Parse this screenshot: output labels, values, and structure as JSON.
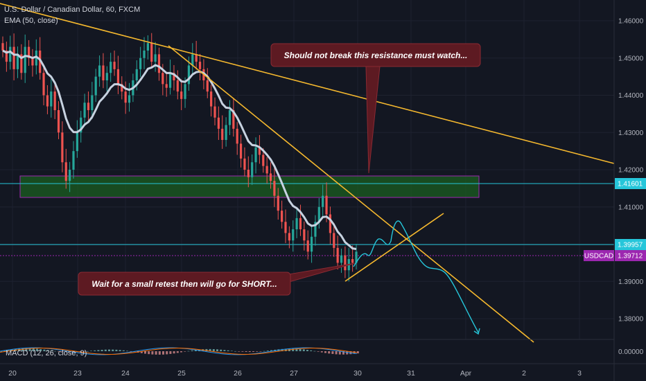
{
  "chart_data": {
    "type": "candlestick",
    "title": "U.S. Dollar / Canadian Dollar, 60, FXCM",
    "indicator_label": "EMA (50, close)",
    "macd_label": "MACD (12, 26, close, 9)",
    "symbol_tag": "USDCAD",
    "price_axis": {
      "ylim": [
        1.375,
        1.465
      ],
      "ticks": [
        "1.46000",
        "1.45000",
        "1.44000",
        "1.43000",
        "1.42000",
        "1.41000",
        "1.40000",
        "1.39000",
        "1.38000"
      ],
      "macd_tick": "0.00000"
    },
    "time_axis": {
      "ticks": [
        "20",
        "23",
        "24",
        "25",
        "26",
        "27",
        "30",
        "31",
        "Apr",
        "2",
        "3"
      ]
    },
    "price_tags": [
      {
        "value": "1.41601",
        "color": "#26c6da"
      },
      {
        "value": "1.39957",
        "color": "#26c6da"
      },
      {
        "value": "1.39712",
        "color": "#9c27b0"
      }
    ],
    "candles_close": [
      1.452,
      1.449,
      1.453,
      1.447,
      1.451,
      1.446,
      1.453,
      1.45,
      1.448,
      1.452,
      1.446,
      1.44,
      1.437,
      1.441,
      1.436,
      1.43,
      1.422,
      1.417,
      1.42,
      1.425,
      1.43,
      1.434,
      1.438,
      1.436,
      1.44,
      1.445,
      1.448,
      1.444,
      1.446,
      1.449,
      1.447,
      1.443,
      1.441,
      1.438,
      1.44,
      1.444,
      1.447,
      1.45,
      1.452,
      1.454,
      1.449,
      1.451,
      1.446,
      1.443,
      1.442,
      1.446,
      1.444,
      1.441,
      1.439,
      1.443,
      1.448,
      1.451,
      1.449,
      1.447,
      1.444,
      1.441,
      1.437,
      1.434,
      1.431,
      1.428,
      1.432,
      1.436,
      1.431,
      1.427,
      1.423,
      1.42,
      1.418,
      1.422,
      1.426,
      1.424,
      1.421,
      1.419,
      1.417,
      1.413,
      1.409,
      1.406,
      1.403,
      1.401,
      1.404,
      1.407,
      1.404,
      1.401,
      1.398,
      1.402,
      1.406,
      1.41,
      1.413,
      1.408,
      1.403,
      1.399,
      1.395,
      1.397,
      1.393,
      1.396,
      1.395,
      1.398
    ],
    "ema50_label": "EMA (50, close)",
    "projection_label": "projected path"
  },
  "annotations": {
    "resistance_note": "Should not break this resistance must watch...",
    "retest_note": "Wait for a small retest then will go for SHORT..."
  },
  "colors": {
    "background": "#131722",
    "bull": "#26a69a",
    "bear": "#ef5350",
    "ema": "#c7d2e0",
    "trendline": "#f5b82e",
    "zone_fill": "#1b5e20",
    "zone_border": "#9c27b0",
    "hline": "#26c6da",
    "note_bg": "#5d1a22",
    "note_border": "#8a2a33"
  }
}
